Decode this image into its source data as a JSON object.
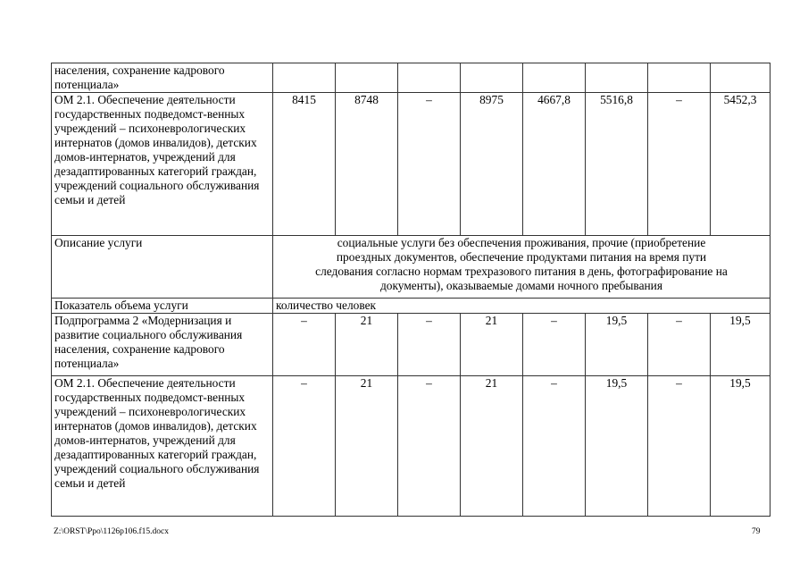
{
  "table": {
    "rows": [
      {
        "label": "населения, сохранение кадрового потенциала»",
        "values": [
          "",
          "",
          "",
          "",
          "",
          "",
          "",
          ""
        ]
      },
      {
        "label": "ОМ 2.1. Обеспечение деятельности государственных подведомст-венных учреждений – психоневрологических интернатов (домов инвалидов), детских домов-интернатов, учреждений для дезадаптированных категорий граждан, учреждений социального обслуживания семьи и детей",
        "values": [
          "8415",
          "8748",
          "–",
          "8975",
          "4667,8",
          "5516,8",
          "–",
          "5452,3"
        ]
      },
      {
        "label": "Описание услуги",
        "span_text": "социальные услуги без обеспечения проживания, прочие (приобретение проездных документов, обеспечение продуктами питания на время пути следования согласно нормам трехразового питания в день, фотографирование на документы), оказываемые домами ночного пребывания"
      },
      {
        "label": "Показатель объема услуги",
        "span_text": "количество человек"
      },
      {
        "label": "Подпрограмма 2 «Модернизация и развитие социального обслуживания населения, сохранение кадрового потенциала»",
        "values": [
          "–",
          "21",
          "–",
          "21",
          "–",
          "19,5",
          "–",
          "19,5"
        ]
      },
      {
        "label": "ОМ 2.1. Обеспечение деятельности государственных подведомст-венных учреждений – психоневрологических интернатов (домов инвалидов), детских домов-интернатов, учреждений для дезадаптированных категорий граждан, учреждений социального обслуживания семьи и детей",
        "values": [
          "–",
          "21",
          "–",
          "21",
          "–",
          "19,5",
          "–",
          "19,5"
        ]
      }
    ]
  },
  "footer": {
    "file_path": "Z:\\ORST\\Ppo\\1126p106.f15.docx",
    "page_number": "79"
  }
}
